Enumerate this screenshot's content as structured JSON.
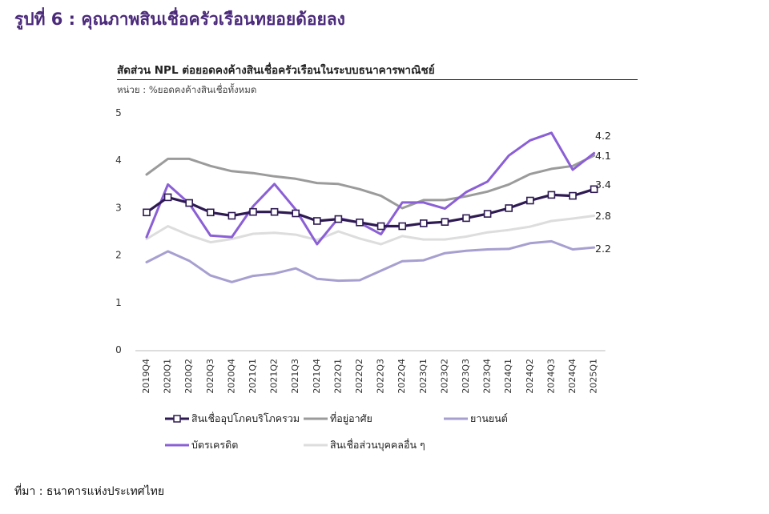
{
  "figure_title": "รูปที่ 6 : คุณภาพสินเชื่อครัวเรือนทยอยด้อยลง",
  "source_label": "ที่มา : ธนาคารแห่งประเทศไทย",
  "colors": {
    "total": "#2e1a52",
    "housing": "#9b9b9b",
    "auto": "#a79fd0",
    "credit": "#8b5fd6",
    "other": "#dddddd",
    "title": "#4b2a7b"
  },
  "chart_data": {
    "type": "line",
    "title": "สัดส่วน NPL ต่อยอดคงค้างสินเชื่อครัวเรือนในระบบธนาคารพาณิชย์",
    "subtitle": "หน่วย : %ยอดคงค้างสินเชื่อทั้งหมด",
    "xlabel": "",
    "ylabel": "",
    "ylim": [
      0,
      5
    ],
    "yticks": [
      "0",
      "1",
      "2",
      "3",
      "4",
      "5"
    ],
    "grid": false,
    "legend_position": "bottom",
    "categories": [
      "2019Q4",
      "2020Q1",
      "2020Q2",
      "2020Q3",
      "2020Q4",
      "2021Q1",
      "2021Q2",
      "2021Q3",
      "2021Q4",
      "2022Q1",
      "2022Q2",
      "2022Q3",
      "2022Q4",
      "2023Q1",
      "2023Q2",
      "2023Q3",
      "2023Q4",
      "2024Q1",
      "2024Q2",
      "2024Q3",
      "2024Q4",
      "2025Q1"
    ],
    "series": [
      {
        "key": "housing",
        "name": "ที่อยู่อาศัย",
        "color": "#9b9b9b",
        "markers": false,
        "end_label": "",
        "values": [
          3.7,
          4.03,
          4.03,
          3.88,
          3.77,
          3.73,
          3.66,
          3.61,
          3.52,
          3.5,
          3.39,
          3.25,
          2.99,
          3.16,
          3.16,
          3.24,
          3.34,
          3.49,
          3.71,
          3.82,
          3.88,
          4.1
        ]
      },
      {
        "key": "other",
        "name": "สินเชื่อส่วนบุคคลอื่น ๆ",
        "color": "#dddddd",
        "markers": false,
        "end_label": "2.8",
        "values": [
          2.34,
          2.61,
          2.42,
          2.27,
          2.34,
          2.45,
          2.47,
          2.43,
          2.32,
          2.5,
          2.35,
          2.23,
          2.4,
          2.33,
          2.33,
          2.39,
          2.48,
          2.53,
          2.6,
          2.72,
          2.77,
          2.83
        ]
      },
      {
        "key": "auto",
        "name": "ยานยนต์",
        "color": "#a79fd0",
        "markers": false,
        "end_label": "2.2",
        "values": [
          1.85,
          2.08,
          1.88,
          1.57,
          1.43,
          1.56,
          1.61,
          1.72,
          1.5,
          1.46,
          1.47,
          1.67,
          1.87,
          1.89,
          2.04,
          2.09,
          2.12,
          2.13,
          2.25,
          2.29,
          2.12,
          2.16
        ]
      },
      {
        "key": "credit",
        "name": "บัตรเครดิต",
        "color": "#8b5fd6",
        "markers": false,
        "end_label": "4.1",
        "values": [
          2.38,
          3.49,
          3.09,
          2.41,
          2.38,
          3.03,
          3.5,
          2.96,
          2.23,
          2.78,
          2.68,
          2.44,
          3.11,
          3.11,
          2.98,
          3.33,
          3.55,
          4.1,
          4.42,
          4.58,
          3.8,
          4.15
        ]
      },
      {
        "key": "total",
        "name": "สินเชื่ออุปโภคบริโภครวม",
        "color": "#2e1a52",
        "markers": true,
        "end_label": "3.4",
        "values": [
          2.9,
          3.22,
          3.1,
          2.9,
          2.83,
          2.91,
          2.91,
          2.88,
          2.72,
          2.76,
          2.69,
          2.61,
          2.61,
          2.67,
          2.7,
          2.78,
          2.87,
          2.99,
          3.15,
          3.27,
          3.25,
          3.39
        ]
      }
    ],
    "end_labels_extra": [
      {
        "text": "4.2"
      }
    ]
  }
}
